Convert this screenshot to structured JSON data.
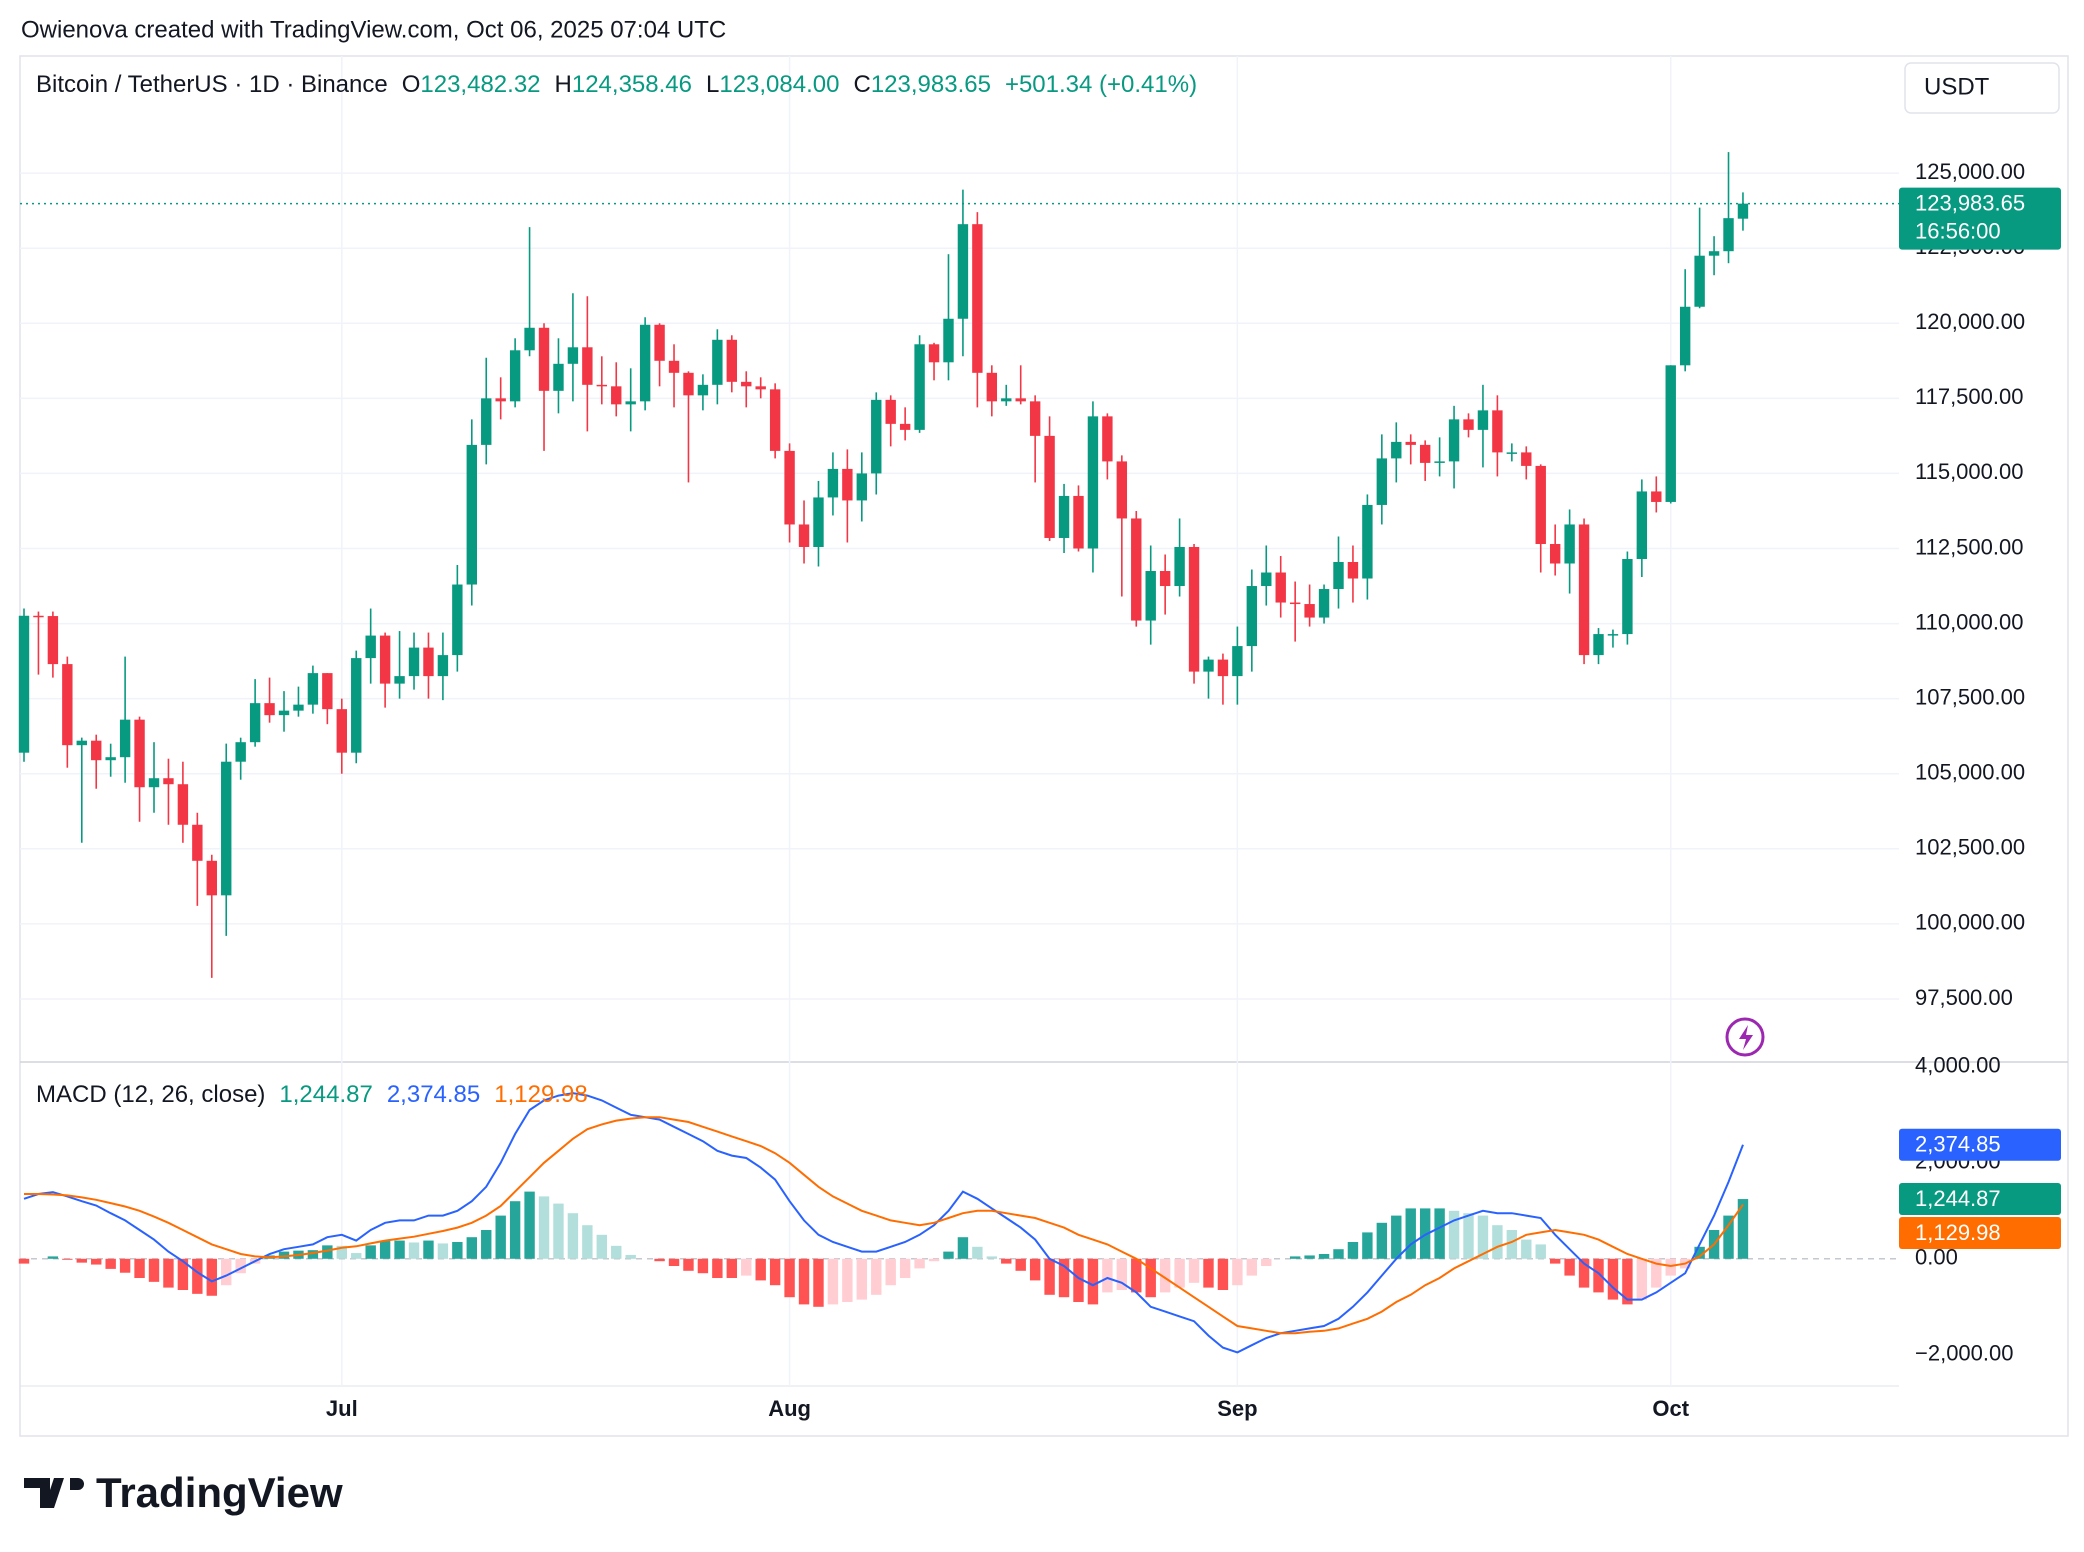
{
  "attribution": "Owienova created with TradingView.com, Oct 06, 2025 07:04 UTC",
  "logo": "TradingView",
  "chart_data": [
    {
      "type": "candlestick",
      "title": "Bitcoin / TetherUS · 1D · Binance",
      "header": [
        {
          "label": "O",
          "value": "123,482.32"
        },
        {
          "label": "H",
          "value": "124,358.46"
        },
        {
          "label": "L",
          "value": "123,084.00"
        },
        {
          "label": "C",
          "value": "123,983.65"
        }
      ],
      "change": "+501.34 (+0.41%)",
      "currency": "USDT",
      "last_price_label": "123,983.65",
      "countdown": "16:56:00",
      "up_color": "#089981",
      "down_color": "#f23645",
      "categories": [
        null,
        null,
        null,
        null,
        null,
        null,
        null,
        null,
        null,
        null,
        null,
        null,
        null,
        null,
        null,
        null,
        null,
        null,
        null,
        null,
        null,
        null,
        "Jul",
        null,
        null,
        null,
        null,
        null,
        null,
        null,
        null,
        null,
        null,
        null,
        null,
        null,
        null,
        null,
        null,
        null,
        null,
        null,
        null,
        null,
        null,
        null,
        null,
        null,
        null,
        null,
        null,
        null,
        null,
        "Aug",
        null,
        null,
        null,
        null,
        null,
        null,
        null,
        null,
        null,
        null,
        null,
        null,
        null,
        null,
        null,
        null,
        null,
        null,
        null,
        null,
        null,
        null,
        null,
        null,
        null,
        null,
        null,
        null,
        null,
        null,
        "Sep",
        null,
        null,
        null,
        null,
        null,
        null,
        null,
        null,
        null,
        null,
        null,
        null,
        null,
        null,
        null,
        null,
        null,
        null,
        null,
        null,
        null,
        null,
        null,
        null,
        null,
        null,
        null,
        null,
        null,
        "Oct",
        null,
        null,
        null,
        null,
        null
      ],
      "open": [
        105700,
        110260,
        110250,
        108650,
        105950,
        106100,
        105450,
        105550,
        106800,
        104550,
        104850,
        104650,
        103300,
        102100,
        100950,
        105400,
        106050,
        107350,
        106950,
        107100,
        107300,
        108350,
        107150,
        105700,
        108850,
        109600,
        108000,
        108250,
        109200,
        108250,
        108950,
        111300,
        115950,
        117500,
        117400,
        119100,
        119850,
        117750,
        118650,
        119200,
        117950,
        117900,
        117300,
        117400,
        119950,
        118750,
        118350,
        117600,
        117950,
        119450,
        118050,
        117900,
        117800,
        115750,
        113300,
        112550,
        114200,
        115150,
        114100,
        115000,
        117450,
        116650,
        116450,
        119300,
        118700,
        120150,
        123300,
        118350,
        117400,
        117500,
        117400,
        116250,
        112850,
        114250,
        112500,
        116900,
        115400,
        113500,
        110100,
        111750,
        111250,
        112550,
        108400,
        108800,
        108250,
        109250,
        111250,
        111700,
        110700,
        110650,
        110200,
        111150,
        112050,
        111500,
        113950,
        115500,
        116050,
        115950,
        115350,
        115400,
        116800,
        116450,
        117100,
        115700,
        115700,
        115250,
        112650,
        112000,
        113300,
        108950,
        109650,
        109650,
        112150,
        114400,
        114050,
        118600,
        120550,
        122250,
        122400,
        123482.32
      ],
      "high": [
        110500,
        110400,
        110400,
        108900,
        106200,
        106300,
        106000,
        108900,
        106900,
        106050,
        105500,
        105400,
        103700,
        102300,
        106000,
        106200,
        108150,
        108200,
        107750,
        107900,
        108600,
        108350,
        107500,
        109100,
        110500,
        109700,
        109750,
        109700,
        109700,
        109700,
        111950,
        116800,
        118850,
        118200,
        119500,
        123200,
        120000,
        119500,
        121000,
        120900,
        118900,
        118700,
        118500,
        120200,
        120000,
        119300,
        118400,
        118300,
        119800,
        119600,
        118400,
        118200,
        118000,
        116000,
        114100,
        114750,
        115700,
        115800,
        115700,
        117700,
        117600,
        117200,
        119600,
        119350,
        122300,
        124450,
        123700,
        118600,
        117950,
        118600,
        117600,
        116900,
        114650,
        114600,
        117400,
        117000,
        115600,
        113750,
        112600,
        112300,
        113500,
        112650,
        108900,
        109000,
        109900,
        111800,
        112600,
        112250,
        111400,
        111300,
        111300,
        112900,
        112600,
        114300,
        116300,
        116700,
        116300,
        116100,
        116200,
        117250,
        117000,
        117950,
        117600,
        116000,
        115900,
        115300,
        113300,
        113800,
        113500,
        109850,
        109800,
        112400,
        114800,
        114900,
        118600,
        121800,
        123850,
        122900,
        125700,
        124358.46
      ],
      "low": [
        105400,
        108300,
        108200,
        105200,
        102700,
        104500,
        104900,
        104700,
        103400,
        103700,
        103300,
        102700,
        100600,
        98200,
        99600,
        104800,
        105900,
        106700,
        106400,
        106900,
        107000,
        106650,
        105000,
        105350,
        108000,
        107200,
        107500,
        107800,
        107500,
        107450,
        108400,
        110600,
        115300,
        116800,
        117200,
        118900,
        115750,
        117000,
        117400,
        116400,
        117300,
        116900,
        116400,
        117100,
        117900,
        117200,
        114700,
        117100,
        117300,
        117700,
        117200,
        117500,
        115500,
        112700,
        112000,
        111900,
        113600,
        112700,
        113400,
        114300,
        115900,
        116100,
        116350,
        118100,
        118100,
        118900,
        117200,
        116900,
        117250,
        117300,
        114700,
        112750,
        112350,
        112400,
        111700,
        114800,
        110900,
        109900,
        109300,
        110300,
        110900,
        108000,
        107500,
        107300,
        107300,
        108400,
        110600,
        110200,
        109400,
        109900,
        110000,
        110500,
        110700,
        110800,
        113300,
        114700,
        115300,
        114750,
        114900,
        114500,
        116200,
        115200,
        114900,
        115400,
        114800,
        111700,
        111600,
        111000,
        108650,
        108650,
        109200,
        109300,
        111550,
        113700,
        114000,
        118400,
        120500,
        121600,
        122000,
        123084.0
      ],
      "close": [
        110260,
        110250,
        108650,
        105950,
        106100,
        105450,
        105550,
        106800,
        104550,
        104850,
        104650,
        103300,
        102100,
        100950,
        105400,
        106050,
        107350,
        106950,
        107100,
        107300,
        108350,
        107150,
        105700,
        108850,
        109600,
        108000,
        108250,
        109200,
        108250,
        108950,
        111300,
        115950,
        117500,
        117400,
        119100,
        119850,
        117750,
        118650,
        119200,
        117950,
        117900,
        117300,
        117400,
        119950,
        118750,
        118350,
        117600,
        117950,
        119450,
        118050,
        117900,
        117800,
        115750,
        113300,
        112550,
        114200,
        115150,
        114100,
        115000,
        117450,
        116650,
        116450,
        119300,
        118700,
        120150,
        123300,
        118350,
        117400,
        117500,
        117400,
        116250,
        112850,
        114250,
        112500,
        116900,
        115400,
        113500,
        110100,
        111750,
        111250,
        112550,
        108400,
        108800,
        108250,
        109250,
        111250,
        111700,
        110700,
        110650,
        110200,
        111150,
        112050,
        111500,
        113950,
        115500,
        116050,
        115950,
        115350,
        115400,
        116800,
        116450,
        117100,
        115700,
        115700,
        115250,
        112650,
        112000,
        113300,
        108950,
        109650,
        109650,
        112150,
        114400,
        114050,
        118600,
        120550,
        122250,
        122400,
        123500,
        123983.65
      ],
      "ylim": [
        95400,
        129000
      ],
      "yticks": [
        {
          "value": 97500,
          "label": "97,500.00"
        },
        {
          "value": 100000,
          "label": "100,000.00"
        },
        {
          "value": 102500,
          "label": "102,500.00"
        },
        {
          "value": 105000,
          "label": "105,000.00"
        },
        {
          "value": 107500,
          "label": "107,500.00"
        },
        {
          "value": 110000,
          "label": "110,000.00"
        },
        {
          "value": 112500,
          "label": "112,500.00"
        },
        {
          "value": 115000,
          "label": "115,000.00"
        },
        {
          "value": 117500,
          "label": "117,500.00"
        },
        {
          "value": 120000,
          "label": "120,000.00"
        },
        {
          "value": 122500,
          "label": "122,500.00"
        },
        {
          "value": 125000,
          "label": "125,000.00"
        }
      ],
      "grid": true
    },
    {
      "type": "macd",
      "title": "MACD (12, 26, close)",
      "histogram_colors": {
        "pos_rising": "#26a69a",
        "pos_falling": "#b2dfdb",
        "neg_falling": "#ff5252",
        "neg_rising": "#ffcdd2"
      },
      "series": [
        {
          "style": "histogram",
          "color": "#089981",
          "last_label": "1,244.87",
          "values": [
            -100,
            0,
            50,
            -20,
            -80,
            -120,
            -210,
            -290,
            -400,
            -480,
            -600,
            -650,
            -730,
            -770,
            -550,
            -300,
            -100,
            70,
            150,
            170,
            180,
            280,
            270,
            120,
            280,
            370,
            380,
            340,
            380,
            320,
            350,
            450,
            600,
            900,
            1200,
            1400,
            1300,
            1150,
            950,
            700,
            500,
            270,
            80,
            0,
            -50,
            -150,
            -250,
            -300,
            -400,
            -400,
            -350,
            -450,
            -550,
            -800,
            -950,
            -1000,
            -950,
            -900,
            -850,
            -750,
            -550,
            -400,
            -200,
            -50,
            150,
            450,
            250,
            50,
            -100,
            -250,
            -450,
            -750,
            -800,
            -900,
            -950,
            -700,
            -650,
            -700,
            -800,
            -700,
            -600,
            -500,
            -600,
            -650,
            -550,
            -350,
            -150,
            0,
            50,
            70,
            100,
            200,
            350,
            550,
            750,
            900,
            1050,
            1050,
            1050,
            1000,
            950,
            900,
            700,
            600,
            400,
            300,
            -100,
            -350,
            -600,
            -700,
            -850,
            -950,
            -850,
            -600,
            -350,
            -200,
            250,
            600,
            900,
            1244.87
          ]
        },
        {
          "style": "line",
          "color": "#2962ff",
          "last_label": "2,374.85",
          "values": [
            1250,
            1350,
            1390,
            1300,
            1200,
            1110,
            950,
            800,
            600,
            400,
            150,
            -50,
            -280,
            -470,
            -350,
            -200,
            -50,
            100,
            200,
            250,
            300,
            450,
            500,
            380,
            600,
            750,
            800,
            800,
            900,
            900,
            1000,
            1200,
            1500,
            2000,
            2600,
            3100,
            3300,
            3400,
            3450,
            3400,
            3300,
            3150,
            3000,
            2950,
            2900,
            2750,
            2600,
            2450,
            2250,
            2150,
            2100,
            1900,
            1650,
            1200,
            800,
            500,
            350,
            250,
            150,
            150,
            250,
            350,
            500,
            700,
            1000,
            1400,
            1250,
            1050,
            850,
            650,
            400,
            0,
            -150,
            -400,
            -550,
            -400,
            -500,
            -700,
            -1000,
            -1100,
            -1200,
            -1300,
            -1600,
            -1850,
            -1950,
            -1800,
            -1650,
            -1550,
            -1500,
            -1450,
            -1400,
            -1250,
            -1000,
            -700,
            -350,
            0,
            300,
            500,
            650,
            800,
            900,
            1000,
            950,
            950,
            900,
            850,
            500,
            200,
            -100,
            -300,
            -600,
            -850,
            -850,
            -700,
            -500,
            -300,
            300,
            900,
            1600,
            2374.85
          ]
        },
        {
          "style": "line",
          "color": "#ff6d00",
          "last_label": "1,129.98",
          "values": [
            1350,
            1350,
            1340,
            1320,
            1280,
            1230,
            1160,
            1090,
            1000,
            880,
            750,
            600,
            450,
            300,
            200,
            100,
            50,
            30,
            50,
            80,
            120,
            170,
            230,
            260,
            320,
            380,
            420,
            460,
            520,
            580,
            650,
            750,
            900,
            1100,
            1400,
            1700,
            2000,
            2250,
            2500,
            2700,
            2800,
            2880,
            2920,
            2950,
            2950,
            2900,
            2850,
            2750,
            2650,
            2550,
            2450,
            2350,
            2200,
            2000,
            1750,
            1500,
            1300,
            1150,
            1000,
            900,
            800,
            750,
            700,
            750,
            850,
            950,
            1000,
            1000,
            950,
            900,
            850,
            750,
            650,
            500,
            400,
            300,
            150,
            0,
            -200,
            -400,
            -600,
            -800,
            -1000,
            -1200,
            -1400,
            -1450,
            -1500,
            -1550,
            -1550,
            -1520,
            -1500,
            -1450,
            -1350,
            -1250,
            -1100,
            -900,
            -750,
            -550,
            -400,
            -200,
            -50,
            100,
            250,
            350,
            500,
            550,
            600,
            550,
            500,
            400,
            250,
            100,
            0,
            -100,
            -150,
            -100,
            50,
            300,
            700,
            1129.98
          ]
        }
      ],
      "ylim": [
        -2650,
        4100
      ],
      "yticks": [
        {
          "value": -2000,
          "label": "−2,000.00"
        },
        {
          "value": 0,
          "label": "0.00"
        },
        {
          "value": 2000,
          "label": "2,000.00"
        },
        {
          "value": 4000,
          "label": "4,000.00"
        }
      ]
    }
  ]
}
